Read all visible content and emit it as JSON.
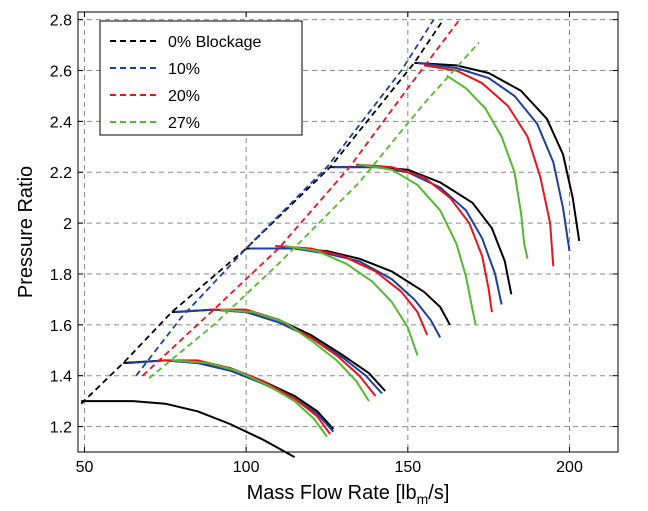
{
  "chart_data": {
    "type": "line",
    "xlabel_main": "Mass Flow Rate [lb",
    "xlabel_sub": "m",
    "xlabel_tail": "/s]",
    "ylabel": "Pressure Ratio",
    "xlim": [
      48,
      215
    ],
    "ylim": [
      1.1,
      2.83
    ],
    "xticks": [
      50,
      100,
      150,
      200
    ],
    "yticks": [
      1.2,
      1.4,
      1.6,
      1.8,
      2,
      2.2,
      2.4,
      2.6,
      2.8
    ],
    "xtick_labels": [
      "50",
      "100",
      "150",
      "200"
    ],
    "ytick_labels": [
      "1.2",
      "1.4",
      "1.6",
      "1.8",
      "2",
      "2.2",
      "2.4",
      "2.6",
      "2.8"
    ],
    "grid": true,
    "legend_position": "top-left",
    "series": [
      {
        "name": "0% Blockage",
        "color": "#000000",
        "surge_line": [
          [
            49,
            1.29
          ],
          [
            62,
            1.45
          ],
          [
            77,
            1.65
          ],
          [
            100,
            1.9
          ],
          [
            126,
            2.22
          ],
          [
            152,
            2.63
          ],
          [
            161,
            2.8
          ]
        ],
        "speed_lines": [
          [
            [
              49,
              1.3
            ],
            [
              65,
              1.3
            ],
            [
              75,
              1.29
            ],
            [
              85,
              1.26
            ],
            [
              95,
              1.21
            ],
            [
              105,
              1.15
            ],
            [
              115,
              1.08
            ]
          ],
          [
            [
              62,
              1.45
            ],
            [
              75,
              1.46
            ],
            [
              85,
              1.45
            ],
            [
              95,
              1.43
            ],
            [
              105,
              1.38
            ],
            [
              115,
              1.32
            ],
            [
              122,
              1.26
            ],
            [
              127,
              1.19
            ]
          ],
          [
            [
              77,
              1.65
            ],
            [
              90,
              1.66
            ],
            [
              100,
              1.65
            ],
            [
              110,
              1.62
            ],
            [
              120,
              1.56
            ],
            [
              130,
              1.48
            ],
            [
              138,
              1.41
            ],
            [
              143,
              1.34
            ]
          ],
          [
            [
              100,
              1.9
            ],
            [
              115,
              1.9
            ],
            [
              125,
              1.89
            ],
            [
              135,
              1.86
            ],
            [
              145,
              1.81
            ],
            [
              155,
              1.73
            ],
            [
              160,
              1.67
            ],
            [
              163,
              1.6
            ]
          ],
          [
            [
              126,
              2.22
            ],
            [
              140,
              2.22
            ],
            [
              150,
              2.21
            ],
            [
              160,
              2.16
            ],
            [
              170,
              2.08
            ],
            [
              176,
              1.98
            ],
            [
              180,
              1.85
            ],
            [
              182,
              1.72
            ]
          ],
          [
            [
              152,
              2.63
            ],
            [
              165,
              2.62
            ],
            [
              175,
              2.59
            ],
            [
              185,
              2.52
            ],
            [
              193,
              2.41
            ],
            [
              198,
              2.27
            ],
            [
              201,
              2.1
            ],
            [
              203,
              1.93
            ]
          ]
        ]
      },
      {
        "name": "10%",
        "color": "#1f3fa0",
        "surge_line": [
          [
            66,
            1.4
          ],
          [
            80,
            1.63
          ],
          [
            100,
            1.9
          ],
          [
            125,
            2.22
          ],
          [
            148,
            2.6
          ],
          [
            158,
            2.8
          ]
        ],
        "speed_lines": [
          [
            [
              64,
              1.45
            ],
            [
              75,
              1.46
            ],
            [
              85,
              1.45
            ],
            [
              95,
              1.42
            ],
            [
              105,
              1.37
            ],
            [
              115,
              1.31
            ],
            [
              122,
              1.25
            ],
            [
              127,
              1.18
            ]
          ],
          [
            [
              78,
              1.65
            ],
            [
              90,
              1.66
            ],
            [
              100,
              1.65
            ],
            [
              110,
              1.61
            ],
            [
              120,
              1.55
            ],
            [
              130,
              1.47
            ],
            [
              137,
              1.4
            ],
            [
              142,
              1.33
            ]
          ],
          [
            [
              101,
              1.9
            ],
            [
              115,
              1.9
            ],
            [
              125,
              1.88
            ],
            [
              135,
              1.85
            ],
            [
              145,
              1.78
            ],
            [
              152,
              1.7
            ],
            [
              157,
              1.62
            ],
            [
              160,
              1.55
            ]
          ],
          [
            [
              127,
              2.22
            ],
            [
              140,
              2.22
            ],
            [
              150,
              2.2
            ],
            [
              160,
              2.14
            ],
            [
              168,
              2.05
            ],
            [
              173,
              1.94
            ],
            [
              177,
              1.8
            ],
            [
              179,
              1.68
            ]
          ],
          [
            [
              153,
              2.63
            ],
            [
              165,
              2.61
            ],
            [
              175,
              2.57
            ],
            [
              183,
              2.5
            ],
            [
              190,
              2.39
            ],
            [
              195,
              2.24
            ],
            [
              198,
              2.06
            ],
            [
              200,
              1.89
            ]
          ]
        ]
      },
      {
        "name": "20%",
        "color": "#e8141b",
        "surge_line": [
          [
            68,
            1.4
          ],
          [
            90,
            1.66
          ],
          [
            110,
            1.9
          ],
          [
            132,
            2.22
          ],
          [
            150,
            2.53
          ],
          [
            166,
            2.8
          ]
        ],
        "speed_lines": [
          [
            [
              73,
              1.46
            ],
            [
              85,
              1.46
            ],
            [
              95,
              1.43
            ],
            [
              105,
              1.38
            ],
            [
              115,
              1.31
            ],
            [
              122,
              1.24
            ],
            [
              126,
              1.17
            ]
          ],
          [
            [
              89,
              1.66
            ],
            [
              100,
              1.66
            ],
            [
              110,
              1.62
            ],
            [
              120,
              1.55
            ],
            [
              128,
              1.48
            ],
            [
              135,
              1.4
            ],
            [
              140,
              1.32
            ]
          ],
          [
            [
              109,
              1.91
            ],
            [
              120,
              1.9
            ],
            [
              130,
              1.87
            ],
            [
              140,
              1.81
            ],
            [
              148,
              1.73
            ],
            [
              153,
              1.65
            ],
            [
              156,
              1.56
            ]
          ],
          [
            [
              134,
              2.23
            ],
            [
              145,
              2.22
            ],
            [
              155,
              2.18
            ],
            [
              163,
              2.1
            ],
            [
              169,
              2.0
            ],
            [
              173,
              1.87
            ],
            [
              175,
              1.74
            ],
            [
              176,
              1.65
            ]
          ],
          [
            [
              155,
              2.62
            ],
            [
              165,
              2.6
            ],
            [
              173,
              2.55
            ],
            [
              181,
              2.46
            ],
            [
              187,
              2.34
            ],
            [
              191,
              2.18
            ],
            [
              194,
              2.0
            ],
            [
              195,
              1.83
            ]
          ]
        ]
      },
      {
        "name": "27%",
        "color": "#55b833",
        "surge_line": [
          [
            70,
            1.39
          ],
          [
            90,
            1.6
          ],
          [
            110,
            1.84
          ],
          [
            135,
            2.16
          ],
          [
            155,
            2.47
          ],
          [
            172,
            2.71
          ]
        ],
        "speed_lines": [
          [
            [
              77,
              1.46
            ],
            [
              88,
              1.45
            ],
            [
              97,
              1.42
            ],
            [
              107,
              1.36
            ],
            [
              115,
              1.3
            ],
            [
              121,
              1.23
            ],
            [
              125,
              1.16
            ]
          ],
          [
            [
              92,
              1.66
            ],
            [
              102,
              1.65
            ],
            [
              112,
              1.61
            ],
            [
              121,
              1.53
            ],
            [
              128,
              1.46
            ],
            [
              134,
              1.38
            ],
            [
              138,
              1.3
            ]
          ],
          [
            [
              112,
              1.91
            ],
            [
              122,
              1.89
            ],
            [
              131,
              1.84
            ],
            [
              139,
              1.77
            ],
            [
              145,
              1.69
            ],
            [
              150,
              1.59
            ],
            [
              153,
              1.48
            ]
          ],
          [
            [
              135,
              2.23
            ],
            [
              145,
              2.21
            ],
            [
              153,
              2.15
            ],
            [
              160,
              2.05
            ],
            [
              165,
              1.92
            ],
            [
              168,
              1.79
            ],
            [
              170,
              1.66
            ],
            [
              171,
              1.6
            ]
          ],
          [
            [
              162,
              2.58
            ],
            [
              168,
              2.53
            ],
            [
              174,
              2.45
            ],
            [
              179,
              2.34
            ],
            [
              183,
              2.2
            ],
            [
              185,
              2.04
            ],
            [
              186,
              1.92
            ],
            [
              187,
              1.86
            ]
          ]
        ]
      }
    ]
  }
}
